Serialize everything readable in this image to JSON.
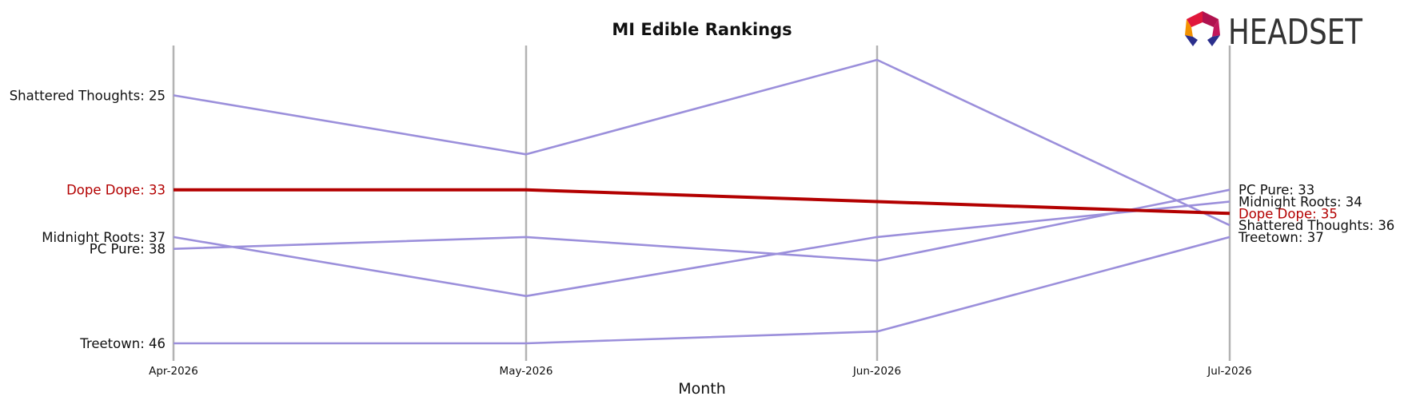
{
  "chart_data": {
    "type": "line",
    "title": "MI Edible Rankings",
    "xlabel": "Month",
    "ylabel": "",
    "x": [
      "Apr-2026",
      "May-2026",
      "Jun-2026",
      "Jul-2026"
    ],
    "y_inverted": true,
    "ylim": [
      22,
      47
    ],
    "grid": "vertical lines at each month",
    "highlight_color": "#b30000",
    "series_color": "#9b8fdb",
    "series": [
      {
        "name": "Shattered Thoughts",
        "values": [
          25,
          30,
          22,
          36
        ],
        "highlight": false
      },
      {
        "name": "Dope Dope",
        "values": [
          33,
          33,
          34,
          35
        ],
        "highlight": true
      },
      {
        "name": "Midnight Roots",
        "values": [
          37,
          42,
          37,
          34
        ],
        "highlight": false
      },
      {
        "name": "PC Pure",
        "values": [
          38,
          37,
          39,
          33
        ],
        "highlight": false
      },
      {
        "name": "Treetown",
        "values": [
          46,
          46,
          45,
          37
        ],
        "highlight": false
      }
    ],
    "left_labels": [
      "Shattered Thoughts: 25",
      "Dope Dope: 33",
      "Midnight Roots: 37",
      "PC Pure: 38",
      "Treetown: 46"
    ],
    "right_labels": [
      "PC Pure: 33",
      "Midnight Roots: 34",
      "Dope Dope: 35",
      "Shattered Thoughts: 36",
      "Treetown: 37"
    ]
  },
  "logo": {
    "text": "HEADSET"
  }
}
